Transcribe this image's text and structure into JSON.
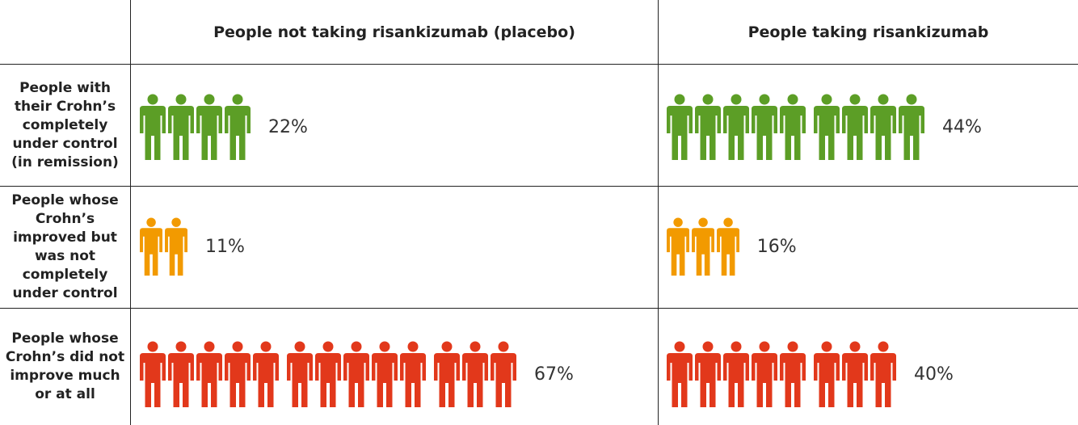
{
  "chart_data": {
    "type": "table",
    "title": "",
    "columns": [
      "People not taking risankizumab (placebo)",
      "People taking risankizumab"
    ],
    "rows": [
      {
        "label": "People with their Crohn’s completely under control (in remission)",
        "color": "#5c9e26",
        "counts": [
          4,
          9
        ],
        "values": [
          "22%",
          "44%"
        ]
      },
      {
        "label": "People whose Crohn’s improved but was not completely under control",
        "color": "#f29a00",
        "counts": [
          2,
          3
        ],
        "values": [
          "11%",
          "16%"
        ]
      },
      {
        "label": "People whose Crohn’s did not improve much or at all",
        "color": "#e2381b",
        "counts": [
          13,
          8
        ],
        "values": [
          "67%",
          "40%"
        ]
      }
    ],
    "grid": true,
    "legend": "none"
  },
  "icons": {
    "person": "person-icon"
  }
}
